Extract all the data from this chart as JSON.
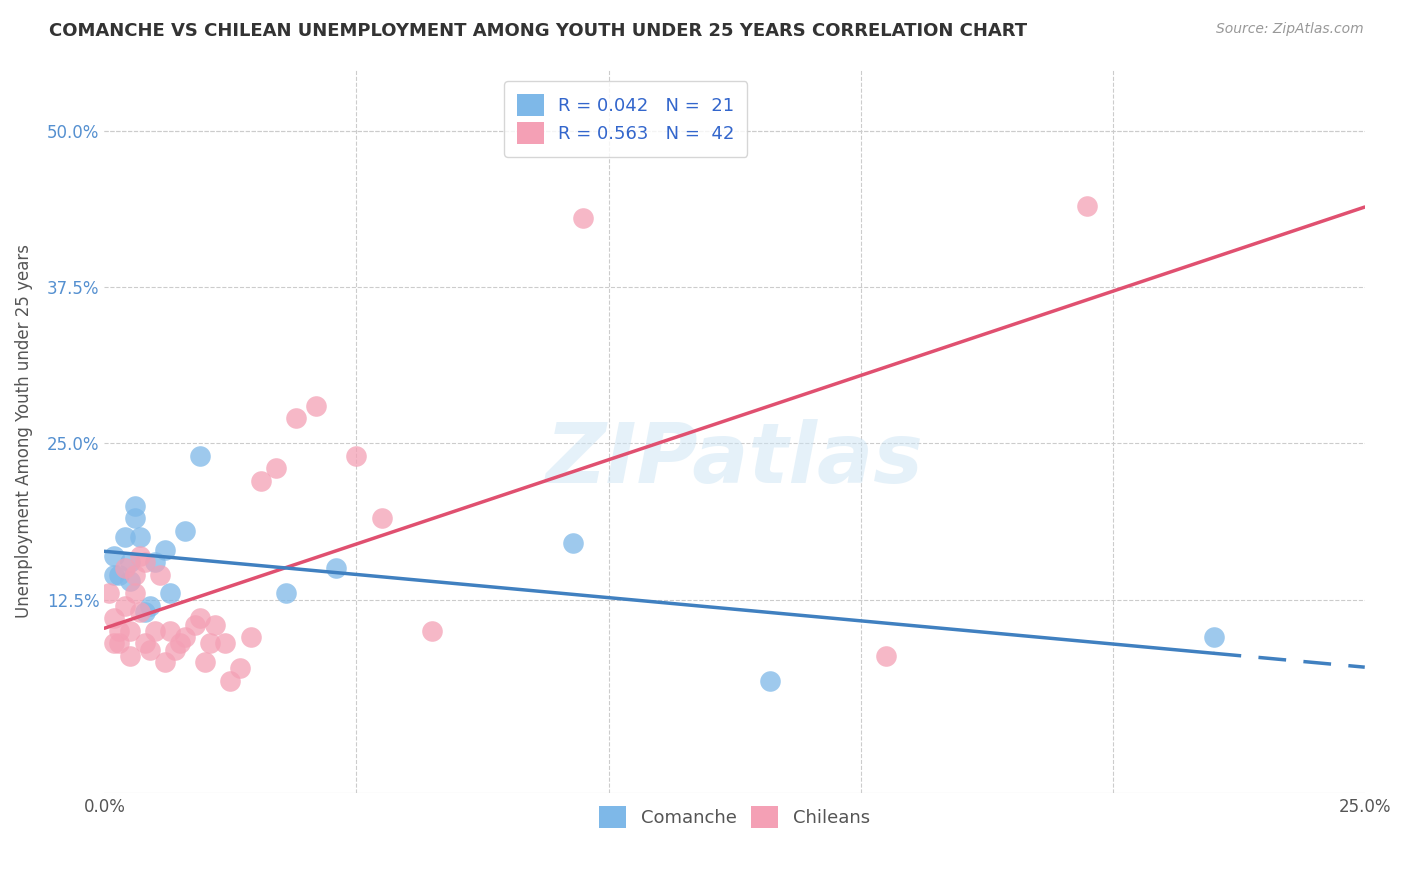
{
  "title": "COMANCHE VS CHILEAN UNEMPLOYMENT AMONG YOUTH UNDER 25 YEARS CORRELATION CHART",
  "source": "Source: ZipAtlas.com",
  "ylabel": "Unemployment Among Youth under 25 years",
  "xlim": [
    0,
    0.25
  ],
  "ylim": [
    -0.03,
    0.55
  ],
  "xtick_vals": [
    0.0,
    0.05,
    0.1,
    0.15,
    0.2,
    0.25
  ],
  "xtick_labels": [
    "0.0%",
    "",
    "",
    "",
    "",
    "25.0%"
  ],
  "ytick_vals": [
    0.0,
    0.125,
    0.25,
    0.375,
    0.5
  ],
  "ytick_labels": [
    "",
    "12.5%",
    "25.0%",
    "37.5%",
    "50.0%"
  ],
  "legend_label1": "R = 0.042   N =  21",
  "legend_label2": "R = 0.563   N =  42",
  "legend_bottom_label1": "Comanche",
  "legend_bottom_label2": "Chileans",
  "color_comanche": "#7EB8E8",
  "color_chilean": "#F4A0B5",
  "line_color_comanche": "#4080C0",
  "line_color_chilean": "#E05070",
  "watermark": "ZIPatlas",
  "comanche_x": [
    0.002,
    0.002,
    0.003,
    0.004,
    0.005,
    0.005,
    0.006,
    0.006,
    0.007,
    0.008,
    0.009,
    0.01,
    0.012,
    0.013,
    0.016,
    0.019,
    0.036,
    0.046,
    0.093,
    0.132,
    0.22
  ],
  "comanche_y": [
    0.145,
    0.16,
    0.145,
    0.175,
    0.155,
    0.14,
    0.19,
    0.2,
    0.175,
    0.115,
    0.12,
    0.155,
    0.165,
    0.13,
    0.18,
    0.24,
    0.13,
    0.15,
    0.17,
    0.06,
    0.095
  ],
  "chilean_x": [
    0.001,
    0.002,
    0.002,
    0.003,
    0.003,
    0.004,
    0.004,
    0.005,
    0.005,
    0.006,
    0.006,
    0.007,
    0.007,
    0.008,
    0.008,
    0.009,
    0.01,
    0.011,
    0.012,
    0.013,
    0.014,
    0.015,
    0.016,
    0.018,
    0.019,
    0.02,
    0.021,
    0.022,
    0.024,
    0.025,
    0.027,
    0.029,
    0.031,
    0.034,
    0.038,
    0.042,
    0.05,
    0.055,
    0.065,
    0.095,
    0.155,
    0.195
  ],
  "chilean_y": [
    0.13,
    0.09,
    0.11,
    0.09,
    0.1,
    0.12,
    0.15,
    0.08,
    0.1,
    0.13,
    0.145,
    0.115,
    0.16,
    0.09,
    0.155,
    0.085,
    0.1,
    0.145,
    0.075,
    0.1,
    0.085,
    0.09,
    0.095,
    0.105,
    0.11,
    0.075,
    0.09,
    0.105,
    0.09,
    0.06,
    0.07,
    0.095,
    0.22,
    0.23,
    0.27,
    0.28,
    0.24,
    0.19,
    0.1,
    0.43,
    0.08,
    0.44
  ]
}
